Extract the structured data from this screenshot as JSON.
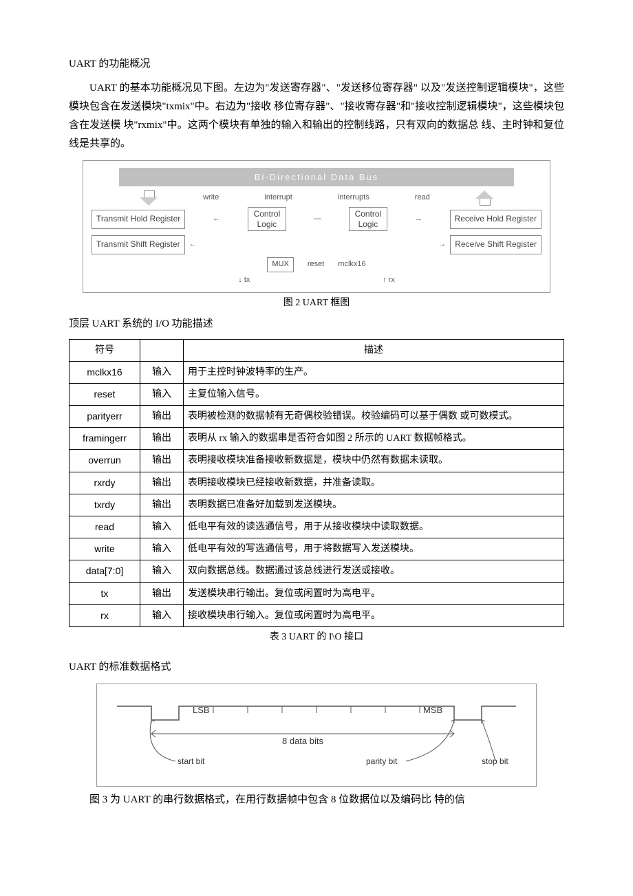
{
  "title1": "UART 的功能概况",
  "para1": "UART 的基本功能概况见下图。左边为\"发送寄存器\"、\"发送移位寄存器\" 以及\"发送控制逻辑模块\"，这些模块包含在发送模块\"txmix\"中。右边为\"接收 移位寄存器\"、\"接收寄存器\"和\"接收控制逻辑模块\"，这些模块包含在发送模 块\"rxmix\"中。这两个模块有单独的输入和输出的控制线路，只有双向的数据总 线、主时钟和复位线是共享的。",
  "diagram": {
    "bus": "Bi-Directional Data Bus",
    "labels": {
      "write": "write",
      "interrupt": "interrupt",
      "interrupts": "interrupts",
      "read": "read",
      "thr": "Transmit Hold Register",
      "tsr": "Transmit Shift Register",
      "rhr": "Receive Hold Register",
      "rsr": "Receive Shift Register",
      "ctrl": "Control\nLogic",
      "mux": "MUX",
      "reset": "reset",
      "mclk": "mclkx16",
      "tx": "tx",
      "rx": "rx"
    }
  },
  "caption2": "图 2 UART 框图",
  "title2": "顶层 UART 系统的 I/O 功能描述",
  "table": {
    "headers": [
      "符号",
      "",
      "描述"
    ],
    "rows": [
      [
        "mclkx16",
        "输入",
        "用于主控时钟波特率的生产。"
      ],
      [
        "reset",
        "输入",
        "主复位输入信号。"
      ],
      [
        "parityerr",
        "输出",
        "表明被检测的数据帧有无奇偶校验错误。校验编码可以基于偶数 或可数模式。"
      ],
      [
        "framingerr",
        "输出",
        "表明从 rx 输入的数据串是否符合如图 2 所示的 UART 数据帧格式。"
      ],
      [
        "overrun",
        "输出",
        "表明接收模块准备接收新数据是，模块中仍然有数据未读取。"
      ],
      [
        "rxrdy",
        "输出",
        "表明接收模块已经接收新数据，并准备读取。"
      ],
      [
        "txrdy",
        "输出",
        "表明数据已准备好加载到发送模块。"
      ],
      [
        "read",
        "输入",
        "低电平有效的读选通信号，用于从接收模块中读取数据。"
      ],
      [
        "write",
        "输入",
        "低电平有效的写选通信号，用于将数据写入发送模块。"
      ],
      [
        "data[7:0]",
        "输入",
        "双向数据总线。数据通过该总线进行发送或接收。"
      ],
      [
        "tx",
        "输出",
        "发送模块串行输出。复位或闲置时为高电平。"
      ],
      [
        "rx",
        "输入",
        "接收模块串行输入。复位或闲置时为高电平。"
      ]
    ]
  },
  "caption3": "表 3 UART 的 I\\O 接口",
  "title3": "UART 的标准数据格式",
  "timing": {
    "lsb": "LSB",
    "msb": "MSB",
    "databits": "8 data bits",
    "start": "start bit",
    "parity": "parity bit",
    "stop": "stop bit"
  },
  "para_end": "图 3 为 UART 的串行数据格式，在用行数据帧中包含 8 位数据位以及编码比 特的信"
}
